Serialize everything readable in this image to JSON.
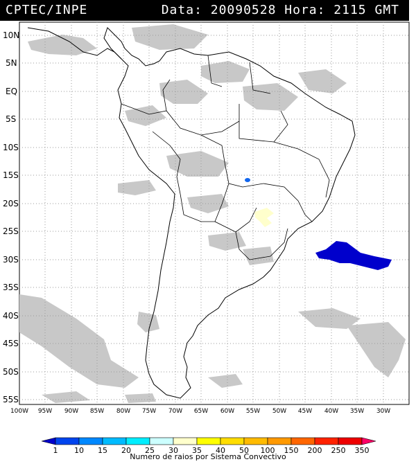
{
  "header": {
    "source": "CPTEC/INPE",
    "datetime": "Data: 20090528 Hora: 2115 GMT"
  },
  "lat_labels": [
    "10N",
    "5N",
    "EQ",
    "5S",
    "10S",
    "15S",
    "20S",
    "25S",
    "30S",
    "35S",
    "40S",
    "45S",
    "50S",
    "55S"
  ],
  "lon_labels": [
    "100W",
    "95W",
    "90W",
    "85W",
    "80W",
    "75W",
    "70W",
    "65W",
    "60W",
    "55W",
    "50W",
    "45W",
    "40W",
    "35W",
    "30W"
  ],
  "colorbar": {
    "values": [
      "1",
      "10",
      "15",
      "20",
      "25",
      "30",
      "35",
      "40",
      "50",
      "100",
      "150",
      "200",
      "250",
      "350"
    ],
    "colors": [
      "#0000cc",
      "#0044ee",
      "#0088ff",
      "#00bbff",
      "#00eeff",
      "#ccffff",
      "#ffffcc",
      "#ffff00",
      "#ffdd00",
      "#ffbb00",
      "#ff9900",
      "#ff6600",
      "#ff2200",
      "#ee0000",
      "#ff0066"
    ],
    "caption": "Numero de raios por Sistema Convectivo"
  },
  "colors": {
    "cloud": "#c8c8c8",
    "grid": "#9a9a9a",
    "coast": "#000000",
    "lightning_dark": "#0000cc",
    "lightning_mid": "#1166ee",
    "lightning_pale": "#ffffcc"
  }
}
